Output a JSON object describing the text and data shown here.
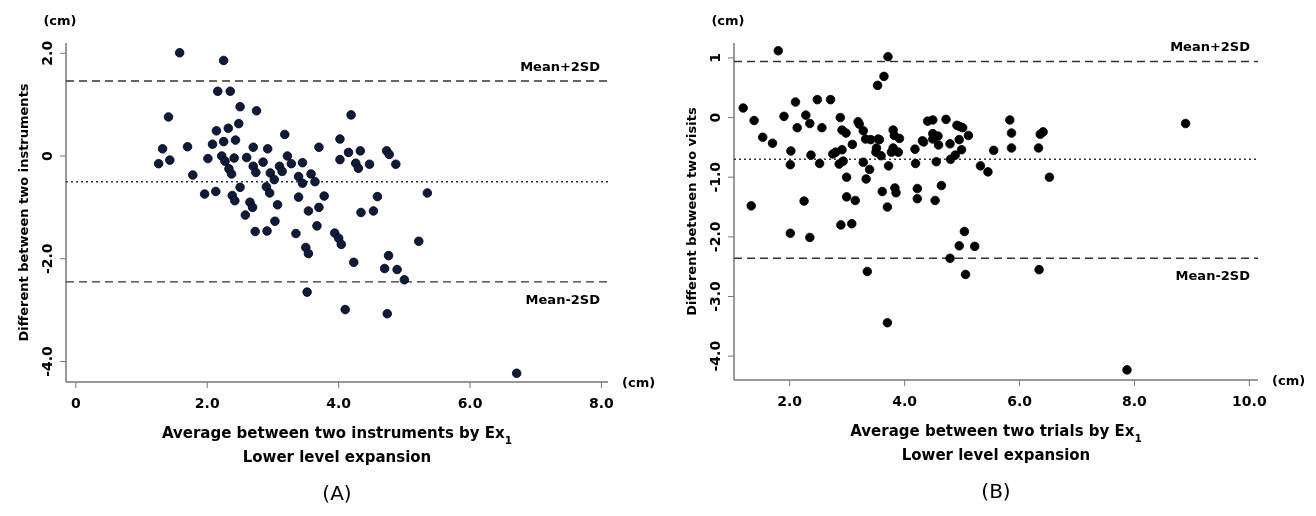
{
  "chart_data": [
    {
      "type": "scatter",
      "xlabel": "Average between two instruments by Ex$_{1}$\nLower level expansion",
      "ylabel": "Different between two instruments",
      "marker": "circle",
      "grid": false,
      "xlim": [
        -0.15,
        8.1
      ],
      "xticks": [
        {
          "value": 0,
          "label": "0"
        },
        {
          "value": 2,
          "label": "2.0"
        },
        {
          "value": 4,
          "label": "4.0"
        },
        {
          "value": 6,
          "label": "6.0"
        },
        {
          "value": 8,
          "label": "8.0"
        }
      ],
      "ylim": [
        -4.4,
        2.2
      ],
      "yticks": [
        {
          "value": 2,
          "label": "2.0"
        },
        {
          "value": 0,
          "label": "0"
        },
        {
          "value": -2,
          "label": "-2.0"
        },
        {
          "value": -4,
          "label": "-4.0"
        }
      ],
      "ref_lines": [
        {
          "axis": "y",
          "value": 1.46,
          "label": "Mean+2SD",
          "line_style": "dashed"
        },
        {
          "axis": "y",
          "value": -0.5,
          "line_style": "dotted"
        },
        {
          "axis": "y",
          "value": -2.45,
          "label": "Mean-2SD",
          "line_style": "dashed"
        }
      ],
      "annotations": [
        "(cm)",
        "(cm)",
        "(A)"
      ],
      "series": [
        {
          "color": "#0d1b3e",
          "x": [
            1.58,
            2.25,
            2.16,
            2.35,
            2.5,
            2.75,
            1.41,
            2.48,
            2.32,
            2.14,
            2.25,
            2.43,
            2.08,
            3.18,
            1.32,
            1.7,
            2.7,
            2.92,
            3.7,
            4.02,
            4.19,
            1.26,
            1.43,
            1.78,
            2.01,
            2.22,
            2.27,
            2.41,
            2.6,
            2.33,
            2.37,
            2.7,
            2.74,
            2.85,
            2.96,
            3.02,
            3.1,
            3.14,
            3.22,
            3.28,
            3.45,
            3.39,
            3.45,
            3.58,
            3.64,
            4.02,
            4.15,
            1.96,
            2.13,
            2.5,
            2.38,
            2.42,
            2.9,
            2.95,
            3.39,
            3.78,
            2.65,
            2.69,
            3.07,
            3.7,
            3.54,
            4.33,
            4.73,
            4.77,
            4.26,
            4.3,
            4.47,
            4.87,
            5.35,
            4.59,
            4.34,
            4.53,
            3.03,
            2.91,
            3.35,
            3.67,
            3.94,
            4.0,
            4.04,
            3.5,
            3.54,
            5.22,
            4.23,
            4.76,
            4.7,
            4.89,
            5.0,
            3.52,
            4.1,
            4.74,
            6.71,
            2.58,
            2.73
          ],
          "values": [
            2.01,
            1.86,
            1.26,
            1.26,
            0.96,
            0.88,
            0.76,
            0.63,
            0.54,
            0.49,
            0.28,
            0.31,
            0.23,
            0.42,
            0.14,
            0.18,
            0.17,
            0.14,
            0.17,
            0.33,
            0.8,
            -0.15,
            -0.08,
            -0.37,
            -0.05,
            0.0,
            -0.1,
            -0.04,
            -0.03,
            -0.25,
            -0.35,
            -0.2,
            -0.32,
            -0.12,
            -0.33,
            -0.46,
            -0.2,
            -0.3,
            0.0,
            -0.15,
            -0.13,
            -0.4,
            -0.53,
            -0.35,
            -0.5,
            -0.07,
            0.07,
            -0.74,
            -0.69,
            -0.61,
            -0.77,
            -0.87,
            -0.6,
            -0.72,
            -0.8,
            -0.78,
            -0.9,
            -1.0,
            -0.95,
            -1.0,
            -1.07,
            0.1,
            0.1,
            0.03,
            -0.14,
            -0.24,
            -0.16,
            -0.16,
            -0.72,
            -0.79,
            -1.1,
            -1.07,
            -1.27,
            -1.46,
            -1.51,
            -1.36,
            -1.5,
            -1.6,
            -1.72,
            -1.78,
            -1.9,
            -1.66,
            -2.07,
            -1.94,
            -2.19,
            -2.21,
            -2.41,
            -2.65,
            -2.99,
            -3.07,
            -4.23,
            -1.15,
            -1.47
          ]
        }
      ]
    },
    {
      "type": "scatter",
      "xlabel": "Average between two trials by Ex$_{1}$\nLower level expansion",
      "ylabel": "Different between two visits",
      "marker": "circle",
      "grid": false,
      "xlim": [
        1.03,
        10.15
      ],
      "xticks": [
        {
          "value": 2,
          "label": "2.0"
        },
        {
          "value": 4,
          "label": "4.0"
        },
        {
          "value": 6,
          "label": "6.0"
        },
        {
          "value": 8,
          "label": "8.0"
        },
        {
          "value": 10,
          "label": "10.0"
        }
      ],
      "ylim": [
        -4.4,
        1.25
      ],
      "yticks": [
        {
          "value": 1,
          "label": "1"
        },
        {
          "value": 0,
          "label": "0"
        },
        {
          "value": -1,
          "label": "-1.0"
        },
        {
          "value": -2,
          "label": "-2.0"
        },
        {
          "value": -3,
          "label": "-3.0"
        },
        {
          "value": -4,
          "label": "-4.0"
        }
      ],
      "ref_lines": [
        {
          "axis": "y",
          "value": 0.94,
          "label": "Mean+2SD",
          "line_style": "dashed"
        },
        {
          "axis": "y",
          "value": -0.7,
          "line_style": "dotted"
        },
        {
          "axis": "y",
          "value": -2.36,
          "label": "Mean-2SD",
          "line_style": "dashed"
        }
      ],
      "annotations": [
        "(cm)",
        "(cm)",
        "(B)"
      ],
      "series": [
        {
          "color": "#000000",
          "x": [
            1.8,
            3.71,
            3.64,
            3.53,
            1.19,
            1.38,
            1.53,
            1.7,
            1.33,
            1.9,
            2.1,
            2.13,
            2.02,
            2.01,
            2.28,
            2.35,
            2.37,
            2.48,
            2.56,
            2.52,
            2.71,
            2.25,
            2.01,
            2.35,
            2.88,
            2.91,
            2.98,
            2.91,
            2.75,
            2.8,
            2.86,
            2.93,
            3.09,
            2.99,
            2.99,
            3.14,
            2.89,
            3.08,
            3.19,
            3.21,
            3.28,
            3.32,
            3.41,
            3.28,
            3.39,
            3.33,
            3.54,
            3.56,
            3.51,
            3.5,
            3.59,
            3.61,
            3.7,
            3.8,
            3.82,
            3.91,
            3.8,
            3.77,
            3.89,
            3.72,
            3.83,
            3.85,
            4.18,
            4.19,
            4.22,
            4.22,
            4.31,
            4.33,
            4.4,
            4.49,
            4.49,
            4.49,
            4.58,
            4.59,
            4.55,
            4.53,
            4.64,
            4.72,
            4.79,
            4.8,
            4.88,
            4.91,
            4.96,
            5.01,
            4.95,
            4.99,
            5.11,
            5.04,
            5.32,
            5.45,
            5.55,
            3.35,
            3.7,
            4.95,
            5.22,
            4.79,
            5.06,
            5.83,
            5.86,
            5.86,
            6.33,
            6.36,
            6.41,
            6.52,
            6.34,
            8.89,
            7.87
          ],
          "values": [
            1.12,
            1.02,
            0.69,
            0.54,
            0.16,
            -0.05,
            -0.33,
            -0.43,
            -1.48,
            0.02,
            0.26,
            -0.17,
            -0.56,
            -0.79,
            0.04,
            -0.1,
            -0.63,
            0.3,
            -0.17,
            -0.77,
            0.3,
            -1.4,
            -1.94,
            -2.01,
            0.0,
            -0.21,
            -0.26,
            -0.54,
            -0.61,
            -0.58,
            -0.78,
            -0.73,
            -0.45,
            -1.0,
            -1.33,
            -1.39,
            -1.8,
            -1.78,
            -0.07,
            -0.11,
            -0.22,
            -0.36,
            -0.37,
            -0.75,
            -0.87,
            -1.03,
            -0.36,
            -0.37,
            -0.51,
            -0.58,
            -0.64,
            -1.24,
            -1.5,
            -0.21,
            -0.3,
            -0.35,
            -0.51,
            -0.58,
            -0.58,
            -0.81,
            -1.18,
            -1.26,
            -0.53,
            -0.77,
            -1.19,
            -1.36,
            -0.39,
            -0.41,
            -0.06,
            -0.04,
            -0.27,
            -0.36,
            -0.31,
            -0.46,
            -0.74,
            -1.39,
            -1.14,
            -0.03,
            -0.44,
            -0.7,
            -0.63,
            -0.13,
            -0.15,
            -0.17,
            -0.37,
            -0.54,
            -0.3,
            -1.91,
            -0.81,
            -0.91,
            -0.55,
            -2.58,
            -3.44,
            -2.15,
            -2.16,
            -2.36,
            -2.63,
            -0.04,
            -0.26,
            -0.51,
            -0.51,
            -0.28,
            -0.24,
            -1.0,
            -2.55,
            -0.1,
            -4.23
          ]
        }
      ]
    }
  ]
}
